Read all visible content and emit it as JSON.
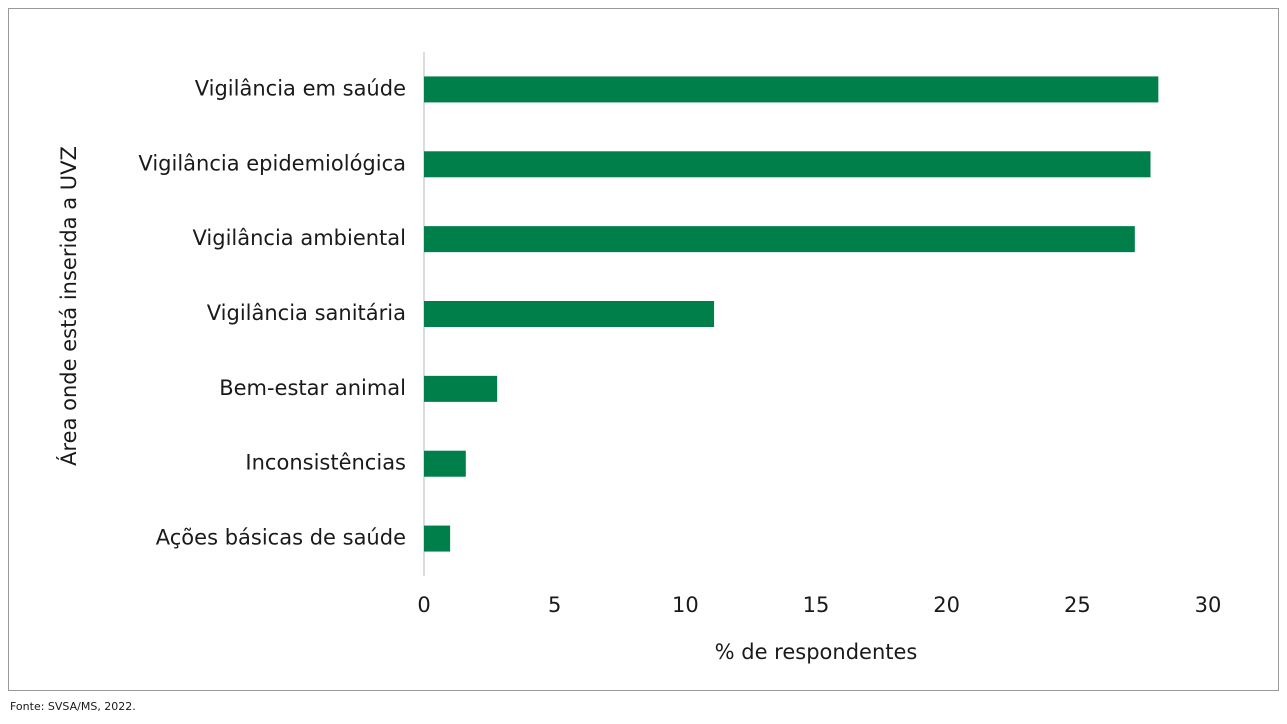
{
  "chart_data": {
    "type": "barh",
    "ylabel": "Área onde está inserida a UVZ",
    "xlabel": "% de respondentes",
    "categories": [
      "Vigilância em saúde",
      "Vigilância epidemiológica",
      "Vigilância ambiental",
      "Vigilância sanitária",
      "Bem-estar animal",
      "Inconsistências",
      "Ações básicas de saúde"
    ],
    "values": [
      28.1,
      27.8,
      27.2,
      11.1,
      2.8,
      1.6,
      1.0
    ],
    "color": "#007f4b",
    "xlim": [
      0,
      30
    ],
    "xticks": [
      0,
      5,
      10,
      15,
      20,
      25,
      30
    ],
    "grid": false,
    "source": "Fonte: SVSA/MS, 2022."
  }
}
